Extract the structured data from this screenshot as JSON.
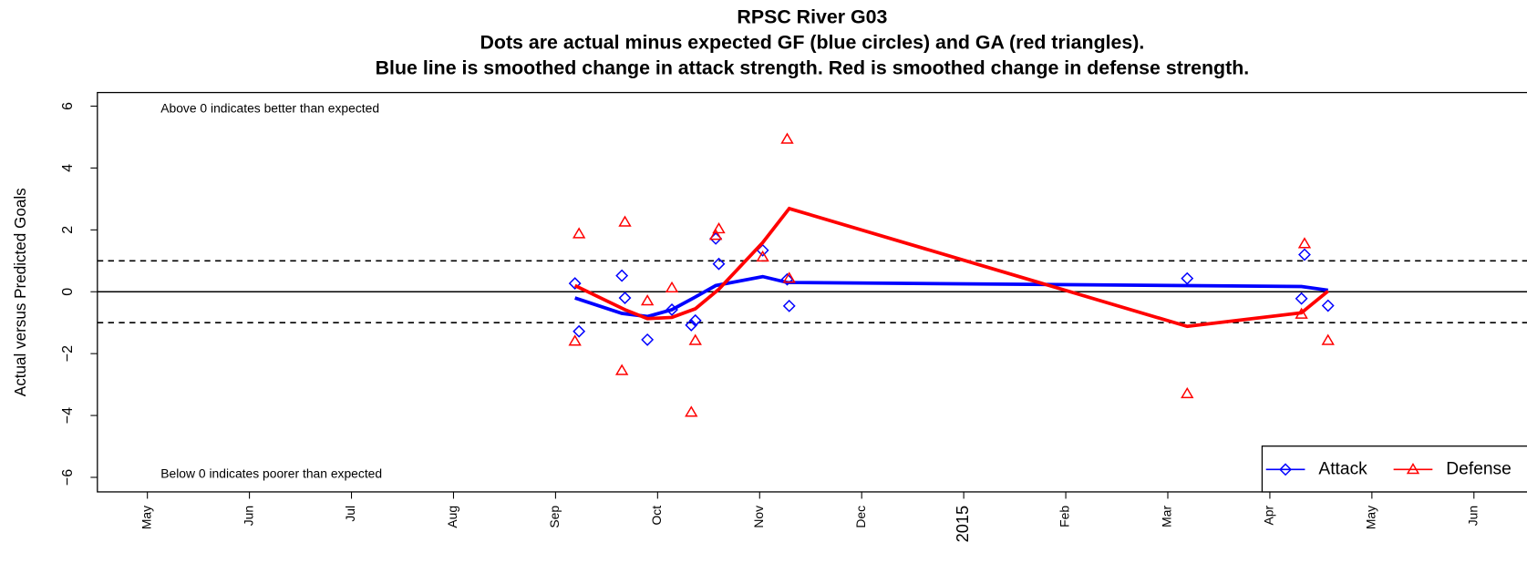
{
  "chart_data": {
    "type": "scatter",
    "title": "RPSC River G03",
    "subtitle": [
      "Dots are actual minus expected GF (blue circles) and GA (red triangles).",
      "Blue line is smoothed change in attack strength. Red is smoothed change in defense strength."
    ],
    "y_label": "Actual versus Predicted Goals",
    "annotations": [
      "Above 0 indicates better than expected",
      "Below 0 indicates poorer than expected"
    ],
    "xlim": [
      4.51,
      18.52
    ],
    "xticks": [
      {
        "value": 5,
        "label": "May"
      },
      {
        "value": 6,
        "label": "Jun"
      },
      {
        "value": 7,
        "label": "Jul"
      },
      {
        "value": 8,
        "label": "Aug"
      },
      {
        "value": 9,
        "label": "Sep"
      },
      {
        "value": 10,
        "label": "Oct"
      },
      {
        "value": 11,
        "label": "Nov"
      },
      {
        "value": 12,
        "label": "Dec"
      },
      {
        "value": 13,
        "label": "2015"
      },
      {
        "value": 14,
        "label": "Feb"
      },
      {
        "value": 15,
        "label": "Mar"
      },
      {
        "value": 16,
        "label": "Apr"
      },
      {
        "value": 17,
        "label": "May"
      },
      {
        "value": 18,
        "label": "Jun"
      }
    ],
    "ylim": [
      -6.47,
      6.44
    ],
    "yticks": [
      {
        "value": -6,
        "label": "−6"
      },
      {
        "value": -4,
        "label": "−4"
      },
      {
        "value": -2,
        "label": "−2"
      },
      0,
      2,
      4,
      6
    ],
    "hlines": [
      {
        "value": 0,
        "style": "solid"
      },
      {
        "value": 1,
        "style": "dashed"
      },
      {
        "value": -1,
        "style": "dashed"
      }
    ],
    "legend": "bottom-right",
    "series": [
      {
        "name": "Attack",
        "color": "#0000ff",
        "marker": "diamond",
        "points": {
          "x": [
            9.19,
            9.23,
            9.65,
            9.68,
            9.9,
            10.14,
            10.33,
            10.37,
            10.57,
            10.6,
            11.03,
            11.27,
            11.29,
            15.19,
            16.34,
            16.31,
            16.57
          ],
          "values": [
            0.27,
            -1.28,
            0.52,
            -0.2,
            -1.55,
            -0.58,
            -1.08,
            -0.93,
            1.72,
            0.9,
            1.34,
            0.4,
            -0.46,
            0.43,
            1.2,
            -0.22,
            -0.45
          ]
        },
        "smooth": {
          "x": [
            9.19,
            9.65,
            9.9,
            10.14,
            10.37,
            10.57,
            11.03,
            11.27,
            15.19,
            16.31,
            16.57
          ],
          "values": [
            -0.2,
            -0.7,
            -0.8,
            -0.58,
            -0.17,
            0.2,
            0.49,
            0.3,
            0.2,
            0.17,
            0.05
          ]
        }
      },
      {
        "name": "Defense",
        "color": "#ff0000",
        "marker": "triangle",
        "points": {
          "x": [
            9.23,
            9.19,
            9.68,
            9.65,
            9.9,
            10.14,
            10.33,
            10.37,
            10.57,
            10.6,
            11.03,
            11.27,
            11.29,
            15.19,
            16.34,
            16.31,
            16.57
          ],
          "values": [
            1.87,
            -1.6,
            2.25,
            -2.55,
            -0.3,
            0.12,
            -3.9,
            -1.58,
            1.82,
            2.03,
            1.12,
            4.93,
            0.43,
            -3.3,
            1.55,
            -0.73,
            -1.58
          ]
        },
        "smooth": {
          "x": [
            9.19,
            9.68,
            9.9,
            10.14,
            10.37,
            10.6,
            11.03,
            11.29,
            15.19,
            16.31,
            16.57
          ],
          "values": [
            0.2,
            -0.58,
            -0.87,
            -0.83,
            -0.55,
            0.08,
            1.59,
            2.69,
            -1.12,
            -0.68,
            0.02
          ]
        }
      }
    ]
  }
}
